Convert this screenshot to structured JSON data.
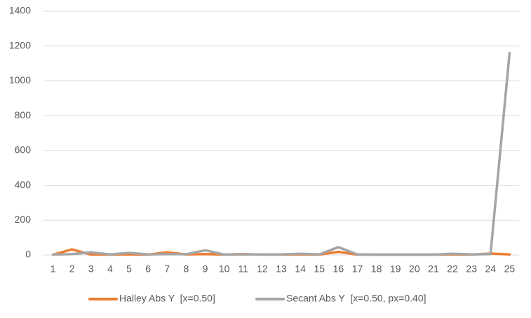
{
  "chart_data": {
    "type": "line",
    "categories": [
      1,
      2,
      3,
      4,
      5,
      6,
      7,
      8,
      9,
      10,
      11,
      12,
      13,
      14,
      15,
      16,
      17,
      18,
      19,
      20,
      21,
      22,
      23,
      24,
      25
    ],
    "series": [
      {
        "name": "Halley Abs Y  [x=0.50]",
        "color": "#ed7d31",
        "values": [
          2,
          32,
          2,
          2,
          3,
          2,
          15,
          3,
          5,
          2,
          5,
          2,
          2,
          3,
          2,
          18,
          2,
          2,
          2,
          2,
          2,
          3,
          2,
          8,
          3
        ]
      },
      {
        "name": "Secant Abs Y  [x=0.50, px=0.40]",
        "color": "#a5a5a5",
        "values": [
          2,
          5,
          15,
          3,
          12,
          3,
          5,
          4,
          27,
          2,
          3,
          3,
          3,
          7,
          3,
          45,
          3,
          2,
          2,
          2,
          2,
          7,
          3,
          5,
          1160
        ]
      }
    ],
    "ylim": [
      0,
      1400
    ],
    "yticks": [
      0,
      200,
      400,
      600,
      800,
      1000,
      1200,
      1400
    ],
    "grid": true,
    "legend": "bottom"
  }
}
